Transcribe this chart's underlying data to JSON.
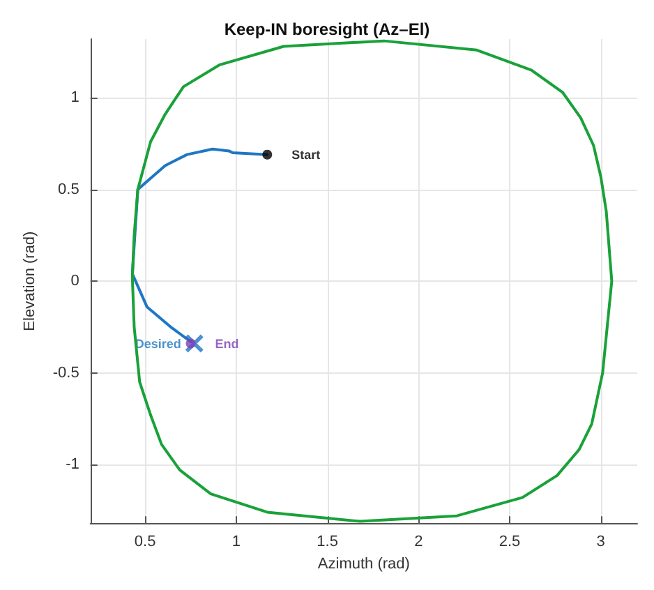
{
  "chart_data": {
    "type": "line",
    "title": "Keep-IN boresight (Az–El)",
    "xlabel": "Azimuth (rad)",
    "ylabel": "Elevation (rad)",
    "xlim": [
      0.2,
      3.2
    ],
    "xticks": [
      0.5,
      1,
      1.5,
      2,
      2.5,
      3
    ],
    "ylim": [
      -1.32,
      1.32
    ],
    "yticks": [
      -1,
      -0.5,
      0,
      0.5,
      1
    ],
    "grid": true,
    "legend": false,
    "series": [
      {
        "color": "#1f77c4",
        "marker": "none",
        "x": [
          1.17,
          0.98,
          0.96,
          0.87,
          0.73,
          0.61,
          0.46,
          0.43,
          0.51,
          0.64,
          0.75
        ],
        "values": [
          0.69,
          0.7,
          0.71,
          0.72,
          0.69,
          0.63,
          0.5,
          0.04,
          -0.14,
          -0.25,
          -0.33
        ]
      },
      {
        "type": "scatter",
        "name": "Start",
        "color": "#000000",
        "marker": "circle",
        "x": [
          1.17
        ],
        "values": [
          0.69
        ]
      },
      {
        "type": "scatter",
        "name": "Desired",
        "color": "#1f77c4",
        "marker": "cross",
        "x": [
          0.77
        ],
        "values": [
          -0.34
        ]
      },
      {
        "type": "scatter",
        "name": "End",
        "color": "#7e3fb5",
        "marker": "circle",
        "x": [
          0.75
        ],
        "values": [
          -0.34
        ]
      }
    ]
  }
}
